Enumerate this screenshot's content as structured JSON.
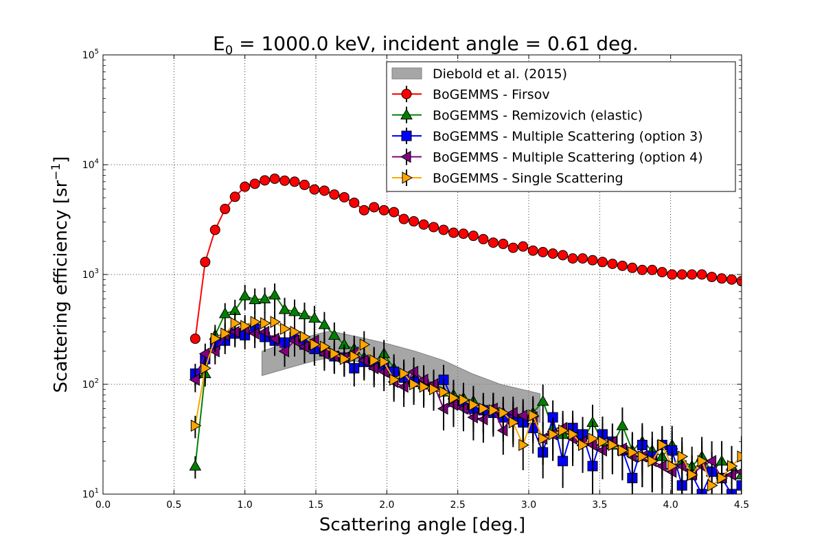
{
  "chart_data": {
    "type": "line",
    "title": "E₀ = 1000.0 keV, incident angle = 0.61 deg.",
    "title_parts": {
      "prefix": "E",
      "subscript": "0",
      "rest": " = 1000.0 keV, incident angle = 0.61 deg."
    },
    "xlabel": "Scattering angle [deg.]",
    "ylabel": "Scattering efficiency [sr⁻¹]",
    "ylabel_parts": {
      "base": "Scattering efficiency [sr",
      "superscript": "−1",
      "close": "]"
    },
    "xlim": [
      0.0,
      4.5
    ],
    "ylim": [
      10,
      100000
    ],
    "yscale": "log",
    "grid": true,
    "legend_position": "top-right",
    "x_ticks": [
      "0.0",
      "0.5",
      "1.0",
      "1.5",
      "2.0",
      "2.5",
      "3.0",
      "3.5",
      "4.0",
      "4.5"
    ],
    "y_ticks": [
      {
        "base": "10",
        "exp": "1"
      },
      {
        "base": "10",
        "exp": "2"
      },
      {
        "base": "10",
        "exp": "3"
      },
      {
        "base": "10",
        "exp": "4"
      },
      {
        "base": "10",
        "exp": "5"
      }
    ],
    "band": {
      "name": "Diebold et al. (2015)",
      "color": "#808080",
      "x": [
        1.12,
        1.3,
        1.5,
        1.6,
        1.8,
        2.0,
        2.2,
        2.4,
        2.6,
        2.8,
        3.08
      ],
      "lower": [
        120,
        140,
        165,
        175,
        160,
        130,
        105,
        85,
        68,
        55,
        45
      ],
      "upper": [
        200,
        240,
        285,
        305,
        270,
        235,
        200,
        165,
        125,
        100,
        82
      ]
    },
    "series": [
      {
        "name": "BoGEMMS - Firsov",
        "color": "#ff0000",
        "marker": "circle",
        "x": [
          0.65,
          0.72,
          0.79,
          0.86,
          0.93,
          1.0,
          1.07,
          1.14,
          1.21,
          1.28,
          1.35,
          1.42,
          1.49,
          1.56,
          1.63,
          1.7,
          1.77,
          1.84,
          1.91,
          1.98,
          2.05,
          2.12,
          2.19,
          2.26,
          2.33,
          2.4,
          2.47,
          2.54,
          2.61,
          2.68,
          2.75,
          2.82,
          2.89,
          2.96,
          3.03,
          3.1,
          3.17,
          3.24,
          3.31,
          3.38,
          3.45,
          3.52,
          3.59,
          3.66,
          3.73,
          3.8,
          3.87,
          3.94,
          4.01,
          4.08,
          4.15,
          4.22,
          4.29,
          4.36,
          4.43,
          4.5
        ],
        "values": [
          260,
          1300,
          2550,
          3950,
          5100,
          6300,
          6700,
          7200,
          7450,
          7150,
          7000,
          6550,
          5950,
          5800,
          5350,
          5050,
          4500,
          3850,
          4100,
          3850,
          3700,
          3200,
          3050,
          2850,
          2700,
          2550,
          2400,
          2350,
          2250,
          2100,
          1950,
          1900,
          1750,
          1800,
          1650,
          1600,
          1550,
          1500,
          1400,
          1400,
          1350,
          1300,
          1250,
          1200,
          1150,
          1100,
          1100,
          1050,
          1000,
          1000,
          1000,
          1000,
          950,
          920,
          900,
          870
        ]
      },
      {
        "name": "BoGEMMS - Remizovich (elastic)",
        "color": "#008000",
        "marker": "triangle-up",
        "x": [
          0.65,
          0.72,
          0.79,
          0.86,
          0.93,
          1.0,
          1.07,
          1.14,
          1.21,
          1.28,
          1.35,
          1.42,
          1.49,
          1.56,
          1.63,
          1.7,
          1.77,
          1.84,
          1.91,
          1.98,
          2.05,
          2.12,
          2.19,
          2.26,
          2.33,
          2.4,
          2.47,
          2.54,
          2.61,
          2.68,
          2.75,
          2.82,
          2.89,
          2.96,
          3.03,
          3.1,
          3.17,
          3.24,
          3.31,
          3.38,
          3.45,
          3.52,
          3.59,
          3.66,
          3.73,
          3.8,
          3.87,
          3.94,
          4.01,
          4.08,
          4.15,
          4.22,
          4.29,
          4.36,
          4.43,
          4.5
        ],
        "values": [
          18,
          125,
          280,
          440,
          470,
          640,
          590,
          600,
          650,
          480,
          460,
          430,
          400,
          350,
          280,
          230,
          210,
          175,
          160,
          190,
          140,
          120,
          110,
          100,
          95,
          85,
          80,
          75,
          70,
          60,
          60,
          55,
          50,
          50,
          55,
          70,
          40,
          35,
          35,
          30,
          45,
          30,
          28,
          42,
          25,
          30,
          25,
          22,
          28,
          20,
          18,
          22,
          16,
          20,
          18,
          15
        ]
      },
      {
        "name": "BoGEMMS - Multiple Scattering (option 3)",
        "color": "#0000ff",
        "marker": "square",
        "x": [
          0.65,
          0.72,
          0.79,
          0.86,
          0.93,
          1.0,
          1.07,
          1.14,
          1.21,
          1.28,
          1.35,
          1.42,
          1.49,
          1.56,
          1.63,
          1.7,
          1.77,
          1.84,
          1.91,
          1.98,
          2.05,
          2.12,
          2.19,
          2.26,
          2.33,
          2.4,
          2.47,
          2.54,
          2.61,
          2.68,
          2.75,
          2.82,
          2.89,
          2.96,
          3.03,
          3.1,
          3.17,
          3.24,
          3.31,
          3.38,
          3.45,
          3.52,
          3.59,
          3.66,
          3.73,
          3.8,
          3.87,
          3.94,
          4.01,
          4.08,
          4.15,
          4.22,
          4.29,
          4.36,
          4.43,
          4.5
        ],
        "values": [
          125,
          170,
          230,
          250,
          290,
          280,
          320,
          270,
          250,
          240,
          270,
          230,
          210,
          200,
          180,
          175,
          140,
          160,
          150,
          145,
          130,
          115,
          105,
          100,
          95,
          110,
          70,
          65,
          60,
          58,
          55,
          50,
          48,
          45,
          40,
          24,
          50,
          20,
          40,
          35,
          18,
          35,
          30,
          25,
          14,
          28,
          22,
          28,
          25,
          12,
          15,
          10,
          16,
          14,
          10,
          12
        ]
      },
      {
        "name": "BoGEMMS - Multiple Scattering (option 4)",
        "color": "#800080",
        "marker": "triangle-left",
        "x": [
          0.65,
          0.72,
          0.79,
          0.86,
          0.93,
          1.0,
          1.07,
          1.14,
          1.21,
          1.28,
          1.35,
          1.42,
          1.49,
          1.56,
          1.63,
          1.7,
          1.77,
          1.84,
          1.91,
          1.98,
          2.05,
          2.12,
          2.19,
          2.26,
          2.33,
          2.4,
          2.47,
          2.54,
          2.61,
          2.68,
          2.75,
          2.82,
          2.89,
          2.96,
          3.03,
          3.1,
          3.17,
          3.24,
          3.31,
          3.38,
          3.45,
          3.52,
          3.59,
          3.66,
          3.73,
          3.8,
          3.87,
          3.94,
          4.01,
          4.08,
          4.15,
          4.22,
          4.29,
          4.36,
          4.43,
          4.5
        ],
        "values": [
          110,
          190,
          200,
          280,
          300,
          320,
          290,
          300,
          260,
          200,
          250,
          220,
          250,
          190,
          180,
          175,
          195,
          165,
          140,
          130,
          105,
          95,
          130,
          110,
          100,
          60,
          65,
          60,
          50,
          48,
          60,
          38,
          55,
          52,
          50,
          32,
          35,
          40,
          32,
          30,
          28,
          25,
          30,
          26,
          22,
          22,
          20,
          18,
          16,
          18,
          15,
          18,
          20,
          14,
          15,
          16
        ]
      },
      {
        "name": "BoGEMMS - Single Scattering",
        "color": "#ffa500",
        "marker": "triangle-right",
        "x": [
          0.65,
          0.72,
          0.79,
          0.86,
          0.93,
          1.0,
          1.07,
          1.14,
          1.21,
          1.28,
          1.35,
          1.42,
          1.49,
          1.56,
          1.63,
          1.7,
          1.77,
          1.84,
          1.91,
          1.98,
          2.05,
          2.12,
          2.19,
          2.26,
          2.33,
          2.4,
          2.47,
          2.54,
          2.61,
          2.68,
          2.75,
          2.82,
          2.89,
          2.96,
          3.03,
          3.1,
          3.17,
          3.24,
          3.31,
          3.38,
          3.45,
          3.52,
          3.59,
          3.66,
          3.73,
          3.8,
          3.87,
          3.94,
          4.01,
          4.08,
          4.15,
          4.22,
          4.29,
          4.36,
          4.43,
          4.5
        ],
        "values": [
          42,
          140,
          260,
          290,
          360,
          340,
          370,
          360,
          370,
          320,
          300,
          270,
          230,
          220,
          190,
          170,
          180,
          230,
          165,
          160,
          110,
          125,
          100,
          95,
          90,
          85,
          75,
          72,
          65,
          60,
          58,
          55,
          45,
          28,
          52,
          32,
          35,
          38,
          35,
          28,
          32,
          30,
          28,
          25,
          24,
          22,
          20,
          28,
          18,
          22,
          15,
          20,
          12,
          14,
          18,
          22
        ]
      }
    ]
  }
}
